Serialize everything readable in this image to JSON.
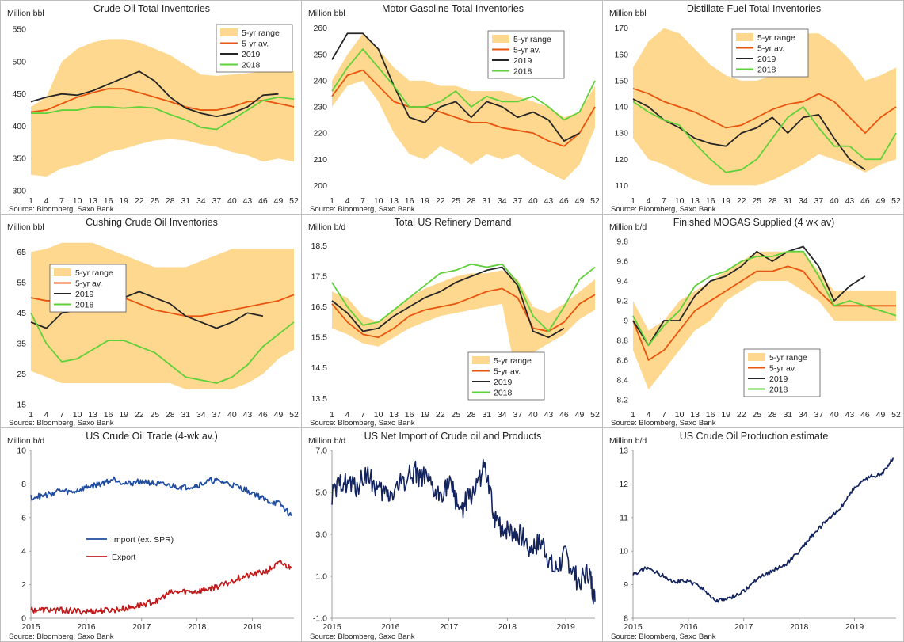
{
  "source": "Source: Bloomberg, Saxo Bank",
  "colors": {
    "range": "#ffd88f",
    "avg": "#e8550f",
    "y2019": "#262626",
    "y2018": "#5fd13a",
    "import": "#1f4ba0",
    "export": "#c01a1a",
    "navy": "#13235e"
  },
  "panels": [
    {
      "id": "crude",
      "title": "Crude Oil Total Inventories",
      "unit": "",
      "source_label": "Source: Bloomberg, Saxo Bank",
      "chart_data": {
        "type": "area",
        "ylabel": "Million bbl",
        "ylim": [
          300,
          560
        ],
        "yticks": [
          300,
          350,
          400,
          450,
          500,
          550
        ],
        "xticks": [
          "1",
          "4",
          "7",
          "10",
          "13",
          "16",
          "19",
          "22",
          "25",
          "28",
          "31",
          "34",
          "37",
          "40",
          "43",
          "46",
          "49",
          "52"
        ],
        "legend": [
          "5-yr range",
          "5-yr av.",
          "2019",
          "2018"
        ],
        "legend_position": "top-right",
        "range_low": [
          325,
          322,
          335,
          340,
          348,
          360,
          365,
          372,
          378,
          380,
          378,
          372,
          368,
          360,
          355,
          345,
          350,
          345
        ],
        "range_high": [
          430,
          445,
          500,
          520,
          530,
          535,
          535,
          530,
          520,
          510,
          495,
          480,
          478,
          480,
          482,
          485,
          485,
          485
        ],
        "avg": [
          422,
          425,
          435,
          445,
          452,
          458,
          458,
          452,
          445,
          438,
          430,
          425,
          425,
          430,
          438,
          440,
          435,
          430
        ],
        "y2019": [
          438,
          445,
          450,
          448,
          455,
          465,
          475,
          485,
          470,
          445,
          428,
          420,
          415,
          420,
          430,
          448,
          450,
          null
        ],
        "y2018": [
          420,
          420,
          425,
          425,
          430,
          430,
          428,
          430,
          428,
          418,
          410,
          398,
          395,
          410,
          425,
          440,
          445,
          442
        ]
      }
    },
    {
      "id": "gasoline",
      "title": "Motor Gasoline Total Inventories",
      "unit": "Million bbl",
      "source_label": "Source: Bloomberg, Saxo Bank",
      "chart_data": {
        "type": "area",
        "ylim": [
          198,
          262
        ],
        "yticks": [
          200,
          210,
          220,
          230,
          240,
          250,
          260
        ],
        "xticks": [
          "1",
          "4",
          "7",
          "10",
          "13",
          "16",
          "19",
          "22",
          "25",
          "28",
          "31",
          "34",
          "37",
          "40",
          "43",
          "46",
          "49",
          "52"
        ],
        "legend": [
          "5-yr range",
          "5-yr av.",
          "2019",
          "2018"
        ],
        "legend_position": "top-right",
        "range_low": [
          230,
          238,
          240,
          232,
          220,
          212,
          210,
          215,
          212,
          208,
          212,
          210,
          212,
          208,
          205,
          202,
          208,
          222
        ],
        "range_high": [
          240,
          250,
          258,
          252,
          245,
          240,
          240,
          238,
          238,
          236,
          236,
          236,
          234,
          232,
          230,
          226,
          228,
          238
        ],
        "avg": [
          234,
          242,
          244,
          238,
          232,
          230,
          230,
          228,
          226,
          224,
          224,
          222,
          221,
          220,
          217,
          215,
          220,
          230
        ],
        "y2019": [
          248,
          258,
          258,
          252,
          238,
          226,
          224,
          230,
          232,
          226,
          232,
          230,
          226,
          228,
          225,
          217,
          220,
          null
        ],
        "y2018": [
          236,
          245,
          252,
          245,
          238,
          230,
          230,
          232,
          236,
          230,
          234,
          232,
          232,
          234,
          230,
          225,
          228,
          240
        ]
      }
    },
    {
      "id": "distillate",
      "title": "Distillate Fuel Total Inventories",
      "unit": "Million bbl",
      "source_label": "Source: Bloomberg, Saxo Bank",
      "chart_data": {
        "type": "area",
        "ylim": [
          108,
          172
        ],
        "yticks": [
          110,
          120,
          130,
          140,
          150,
          160,
          170
        ],
        "xticks": [
          "1",
          "4",
          "7",
          "10",
          "13",
          "16",
          "19",
          "22",
          "25",
          "28",
          "31",
          "34",
          "37",
          "40",
          "43",
          "46",
          "49",
          "52"
        ],
        "legend": [
          "5-yr range",
          "5-yr av.",
          "2019",
          "2018"
        ],
        "legend_position": "top-right",
        "range_low": [
          128,
          120,
          118,
          115,
          112,
          110,
          110,
          110,
          110,
          112,
          115,
          118,
          122,
          120,
          118,
          115,
          118,
          120
        ],
        "range_high": [
          155,
          165,
          170,
          168,
          162,
          156,
          152,
          150,
          150,
          152,
          160,
          168,
          168,
          164,
          158,
          150,
          152,
          155
        ],
        "avg": [
          147,
          145,
          142,
          140,
          138,
          135,
          132,
          133,
          136,
          139,
          141,
          142,
          145,
          142,
          136,
          130,
          136,
          140
        ],
        "y2019": [
          143,
          140,
          135,
          132,
          128,
          126,
          125,
          130,
          132,
          136,
          130,
          136,
          137,
          128,
          120,
          116,
          null,
          null
        ],
        "y2018": [
          142,
          138,
          135,
          133,
          126,
          120,
          115,
          116,
          120,
          128,
          136,
          140,
          132,
          125,
          125,
          120,
          120,
          130
        ]
      }
    },
    {
      "id": "cushing",
      "title": "Cushing Crude Oil Inventories",
      "unit": "Million bbl",
      "source_label": "Source: Bloomberg, Saxo Bank",
      "chart_data": {
        "type": "area",
        "ylim": [
          15,
          70
        ],
        "yticks": [
          15,
          25,
          35,
          45,
          55,
          65
        ],
        "xticks": [
          "1",
          "4",
          "7",
          "10",
          "13",
          "16",
          "19",
          "22",
          "25",
          "28",
          "31",
          "34",
          "37",
          "40",
          "43",
          "46",
          "49",
          "52"
        ],
        "legend": [
          "5-yr range",
          "5-yr av.",
          "2019",
          "2018"
        ],
        "legend_position": "top-left",
        "range_low": [
          26,
          24,
          22,
          22,
          22,
          22,
          22,
          22,
          22,
          22,
          20,
          20,
          20,
          20,
          22,
          25,
          30,
          33
        ],
        "range_high": [
          65,
          66,
          68,
          68,
          68,
          66,
          64,
          62,
          60,
          60,
          60,
          62,
          64,
          66,
          66,
          66,
          66,
          66
        ],
        "avg": [
          50,
          49,
          49,
          50,
          51,
          51,
          50,
          48,
          46,
          45,
          44,
          44,
          45,
          46,
          47,
          48,
          49,
          51
        ],
        "y2019": [
          42,
          40,
          45,
          46,
          47,
          48,
          50,
          52,
          50,
          48,
          44,
          42,
          40,
          42,
          45,
          44,
          null,
          null
        ],
        "y2018": [
          45,
          35,
          29,
          30,
          33,
          36,
          36,
          34,
          32,
          28,
          24,
          23,
          22,
          24,
          28,
          34,
          38,
          42
        ]
      }
    },
    {
      "id": "refinery",
      "title": "Total US Refinery Demand",
      "unit": "Million b/d",
      "source_label": "Source: Bloomberg, Saxo Bank",
      "chart_data": {
        "type": "area",
        "ylim": [
          13.3,
          18.8
        ],
        "yticks": [
          13.5,
          14.5,
          15.5,
          16.5,
          17.5,
          18.5
        ],
        "xticks": [
          "1",
          "4",
          "7",
          "10",
          "13",
          "16",
          "19",
          "22",
          "25",
          "28",
          "31",
          "34",
          "37",
          "40",
          "43",
          "46",
          "49",
          "52"
        ],
        "legend": [
          "5-yr range",
          "5-yr av.",
          "2019",
          "2018"
        ],
        "legend_position": "bottom-right",
        "range_low": [
          15.8,
          15.6,
          15.3,
          15.2,
          15.5,
          15.8,
          16.0,
          16.2,
          16.3,
          16.4,
          16.5,
          16.6,
          14.0,
          15.0,
          15.3,
          15.6,
          16.1,
          16.4
        ],
        "range_high": [
          17.0,
          16.8,
          16.2,
          16.0,
          16.4,
          16.8,
          17.1,
          17.3,
          17.5,
          17.6,
          17.6,
          17.7,
          17.4,
          16.5,
          16.3,
          16.6,
          17.0,
          17.4
        ],
        "avg": [
          16.6,
          16.0,
          15.6,
          15.5,
          15.8,
          16.2,
          16.4,
          16.5,
          16.6,
          16.8,
          17.0,
          17.1,
          16.8,
          15.8,
          15.7,
          16.0,
          16.6,
          16.9
        ],
        "y2019": [
          16.7,
          16.3,
          15.7,
          15.8,
          16.2,
          16.5,
          16.8,
          17.0,
          17.3,
          17.5,
          17.7,
          17.8,
          17.2,
          15.7,
          15.5,
          15.8,
          null,
          null
        ],
        "y2018": [
          17.3,
          16.5,
          15.9,
          16.0,
          16.4,
          16.8,
          17.2,
          17.6,
          17.7,
          17.9,
          17.8,
          17.9,
          17.3,
          16.2,
          15.7,
          16.5,
          17.4,
          17.8
        ]
      }
    },
    {
      "id": "mogas",
      "title": "Finished MOGAS Supplied (4 wk av)",
      "unit": "Million b/d",
      "source_label": "Source: Bloomberg, Saxo Bank",
      "chart_data": {
        "type": "area",
        "ylim": [
          8.15,
          9.85
        ],
        "yticks": [
          8.2,
          8.4,
          8.6,
          8.8,
          9.0,
          9.2,
          9.4,
          9.6,
          9.8
        ],
        "xticks": [
          "1",
          "4",
          "7",
          "10",
          "13",
          "16",
          "19",
          "22",
          "25",
          "28",
          "31",
          "34",
          "37",
          "40",
          "43",
          "46",
          "49",
          "52"
        ],
        "legend": [
          "5-yr range",
          "5-yr av.",
          "2019",
          "2018"
        ],
        "legend_position": "bottom-left",
        "range_low": [
          8.7,
          8.3,
          8.5,
          8.7,
          8.9,
          9.0,
          9.2,
          9.3,
          9.4,
          9.4,
          9.4,
          9.3,
          9.2,
          9.0,
          9.0,
          9.0,
          9.0,
          9.0
        ],
        "range_high": [
          9.2,
          8.9,
          9.0,
          9.2,
          9.3,
          9.4,
          9.5,
          9.6,
          9.7,
          9.7,
          9.7,
          9.7,
          9.5,
          9.3,
          9.3,
          9.3,
          9.3,
          9.3
        ],
        "avg": [
          9.0,
          8.6,
          8.7,
          8.9,
          9.1,
          9.2,
          9.3,
          9.4,
          9.5,
          9.5,
          9.55,
          9.5,
          9.3,
          9.15,
          9.15,
          9.15,
          9.15,
          9.15
        ],
        "y2019": [
          9.0,
          8.75,
          9.0,
          9.0,
          9.25,
          9.4,
          9.45,
          9.55,
          9.7,
          9.6,
          9.7,
          9.75,
          9.55,
          9.2,
          9.35,
          9.45,
          null,
          null
        ],
        "y2018": [
          9.05,
          8.75,
          8.95,
          9.1,
          9.35,
          9.45,
          9.5,
          9.6,
          9.65,
          9.65,
          9.7,
          9.7,
          9.45,
          9.15,
          9.2,
          9.15,
          9.1,
          9.05
        ]
      }
    },
    {
      "id": "trade",
      "title": "US Crude Oil Trade (4-wk av.)",
      "unit": "Million b/d",
      "source_label": "Source: Bloomberg, Saxo Bank",
      "chart_data": {
        "type": "line",
        "ylim": [
          0,
          10
        ],
        "yticks": [
          0,
          2,
          4,
          6,
          8,
          10
        ],
        "xticks": [
          "2015",
          "2016",
          "2017",
          "2018",
          "2019"
        ],
        "xrange": [
          2015.0,
          2019.75
        ],
        "legend": [
          "Import (ex. SPR)",
          "Export"
        ],
        "legend_position": "center-left",
        "x": [
          2015.0,
          2015.25,
          2015.5,
          2015.75,
          2016.0,
          2016.25,
          2016.5,
          2016.75,
          2017.0,
          2017.25,
          2017.5,
          2017.75,
          2018.0,
          2018.25,
          2018.5,
          2018.75,
          2019.0,
          2019.25,
          2019.5,
          2019.7
        ],
        "series": [
          {
            "name": "Import (ex. SPR)",
            "values": [
              7.2,
              7.3,
              7.6,
              7.5,
              7.8,
              8.0,
              8.3,
              8.0,
              8.2,
              8.0,
              7.9,
              7.8,
              7.9,
              8.2,
              8.1,
              7.8,
              7.5,
              7.0,
              6.8,
              6.1
            ]
          },
          {
            "name": "Export",
            "values": [
              0.5,
              0.5,
              0.5,
              0.45,
              0.4,
              0.45,
              0.5,
              0.6,
              0.8,
              1.0,
              1.5,
              1.6,
              1.6,
              1.8,
              2.0,
              2.4,
              2.6,
              2.8,
              3.3,
              3.0
            ]
          }
        ]
      }
    },
    {
      "id": "netimport",
      "title": "US Net Import of Crude oil and Products",
      "unit": "Million b/d",
      "source_label": "Source: Bloomberg, Saxo Bank",
      "chart_data": {
        "type": "line",
        "ylim": [
          -1.0,
          7.0
        ],
        "yticks": [
          "-1.0",
          "1.0",
          "3.0",
          "5.0",
          "7.0"
        ],
        "ytick_values": [
          -1,
          1,
          3,
          5,
          7
        ],
        "xticks": [
          "2015",
          "2016",
          "2017",
          "2018",
          "2019"
        ],
        "xrange": [
          2015.0,
          2019.5
        ],
        "x": [
          2015.0,
          2015.2,
          2015.4,
          2015.6,
          2015.8,
          2016.0,
          2016.2,
          2016.4,
          2016.6,
          2016.8,
          2017.0,
          2017.2,
          2017.4,
          2017.6,
          2017.8,
          2018.0,
          2018.2,
          2018.4,
          2018.6,
          2018.8,
          2019.0,
          2019.2,
          2019.4,
          2019.5
        ],
        "series": [
          {
            "name": "",
            "values": [
              4.8,
              5.6,
              5.2,
              5.9,
              5.0,
              4.9,
              5.5,
              6.0,
              5.6,
              4.8,
              5.4,
              4.2,
              4.9,
              6.2,
              3.6,
              3.2,
              3.0,
              2.4,
              2.6,
              1.2,
              2.0,
              0.8,
              1.2,
              -0.2
            ]
          }
        ]
      }
    },
    {
      "id": "production",
      "title": "US Crude Oil Production estimate",
      "unit": "Million b/d",
      "source_label": "Source: Bloomberg, Saxo Bank",
      "chart_data": {
        "type": "line",
        "ylim": [
          8,
          13
        ],
        "yticks": [
          8,
          9,
          10,
          11,
          12,
          13
        ],
        "xticks": [
          "2015",
          "2016",
          "2017",
          "2018",
          "2019"
        ],
        "xrange": [
          2015.0,
          2019.75
        ],
        "x": [
          2015.0,
          2015.25,
          2015.5,
          2015.75,
          2016.0,
          2016.25,
          2016.5,
          2016.75,
          2017.0,
          2017.25,
          2017.5,
          2017.75,
          2018.0,
          2018.25,
          2018.5,
          2018.75,
          2019.0,
          2019.25,
          2019.5,
          2019.7
        ],
        "series": [
          {
            "name": "",
            "values": [
              9.3,
              9.5,
              9.3,
              9.1,
              9.1,
              8.9,
              8.5,
              8.6,
              8.8,
              9.2,
              9.4,
              9.6,
              10.0,
              10.5,
              10.9,
              11.3,
              11.9,
              12.2,
              12.3,
              12.8
            ]
          }
        ]
      }
    }
  ]
}
